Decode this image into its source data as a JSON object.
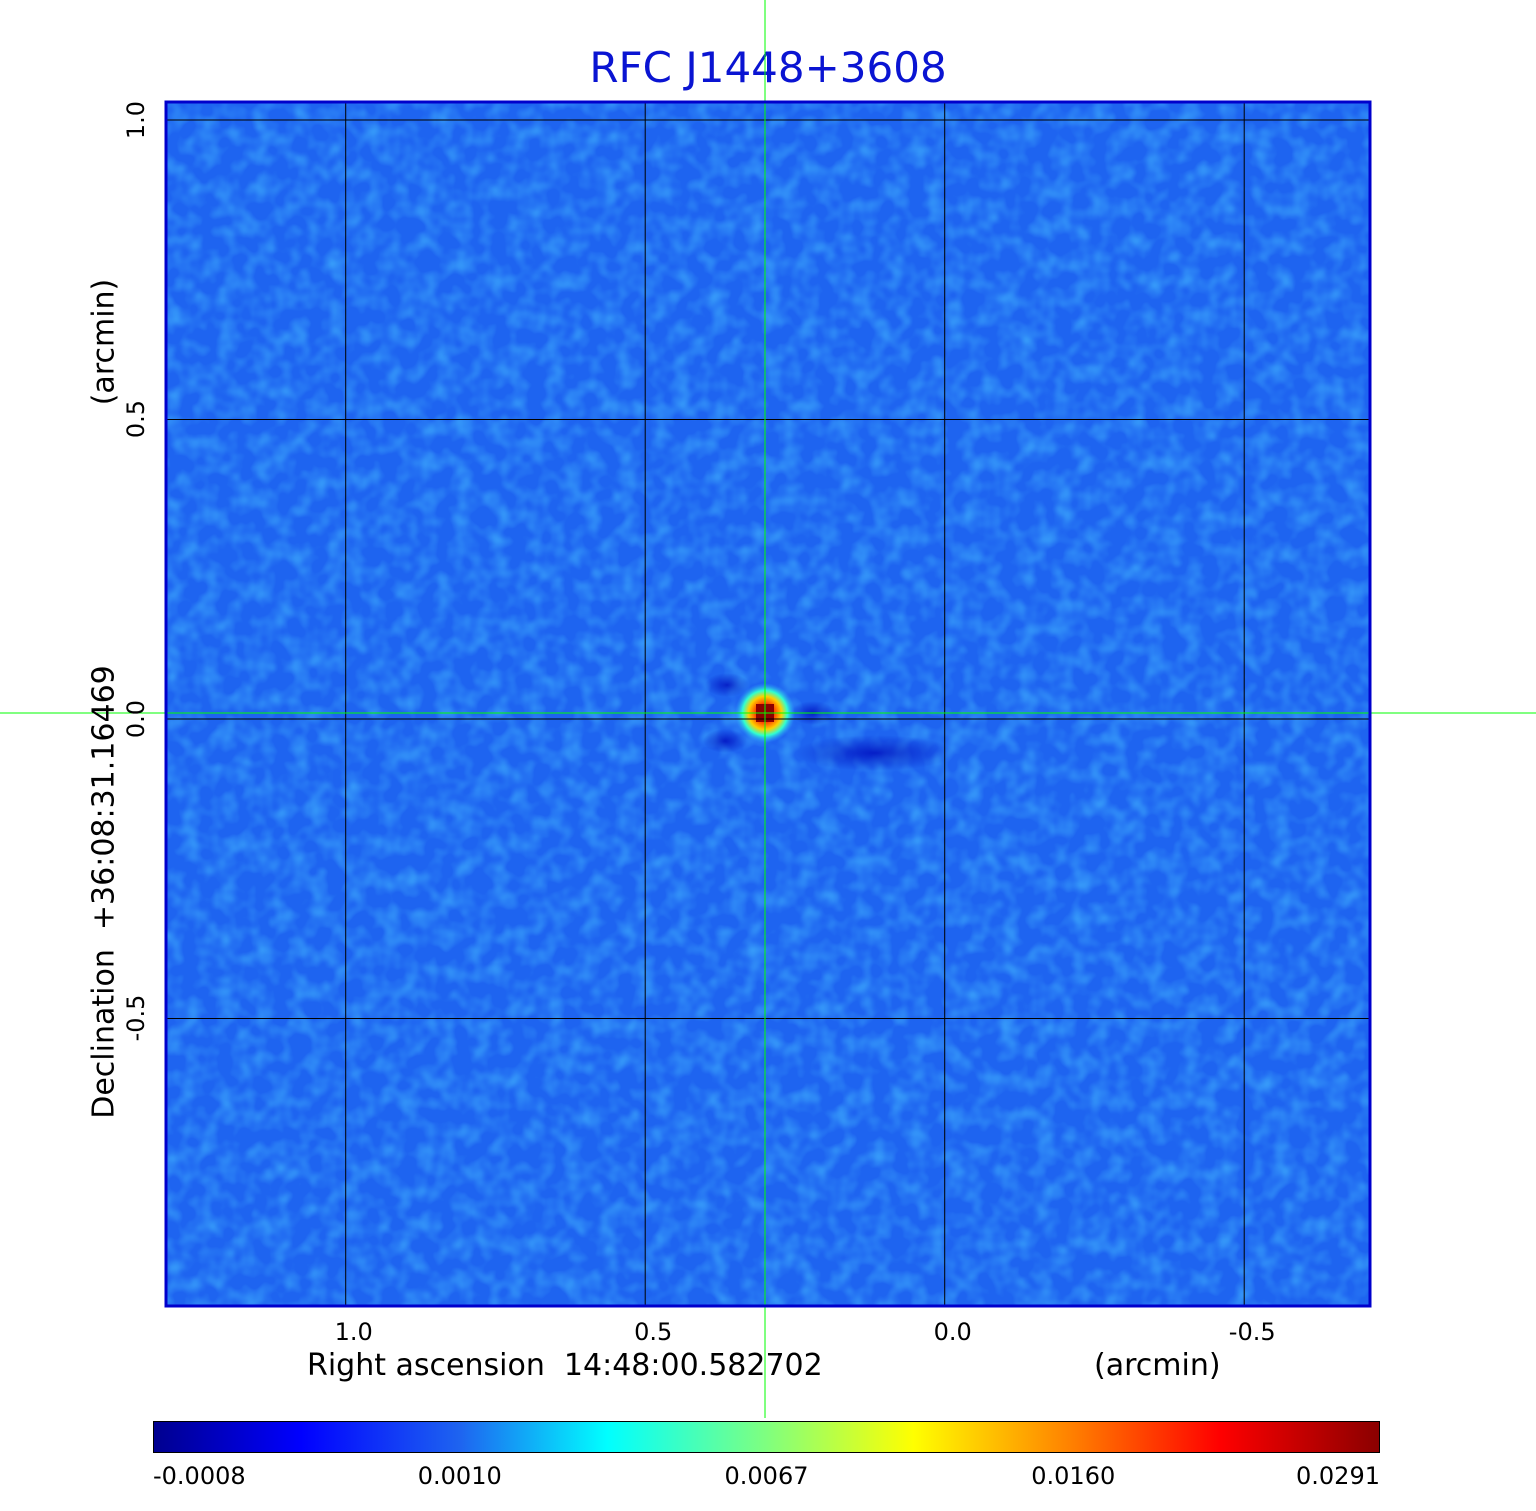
{
  "chart_data": {
    "type": "heatmap",
    "title": "RFC J1448+3608",
    "xlabel": "Right ascension  14:48:00.582702",
    "xunit": "(arcmin)",
    "ylabel": "Declination  +36:08:31.16469",
    "yunit": "(arcmin)",
    "x_ticks": [
      "1.0",
      "0.5",
      "0.0",
      "-0.5"
    ],
    "y_ticks": [
      "1.0",
      "0.5",
      "0.0",
      "-0.5"
    ],
    "xlim": [
      1.3,
      -0.71
    ],
    "ylim": [
      -0.98,
      1.03
    ],
    "grid": true,
    "source_peak": {
      "ra_offset_arcmin": 0.3,
      "dec_offset_arcmin": 0.01,
      "flux": 0.0291
    },
    "colormap": "jet",
    "colorbar_ticks": [
      "-0.0008",
      "0.0010",
      "0.0067",
      "0.0160",
      "0.0291"
    ],
    "colorbar_range": [
      -0.0008,
      0.0291
    ],
    "colors": {
      "title": "#0a14d2",
      "frame": "#0000cc",
      "background_map": "#1e64f0",
      "crosshair": "#00ff00",
      "grid": "#000000"
    }
  }
}
